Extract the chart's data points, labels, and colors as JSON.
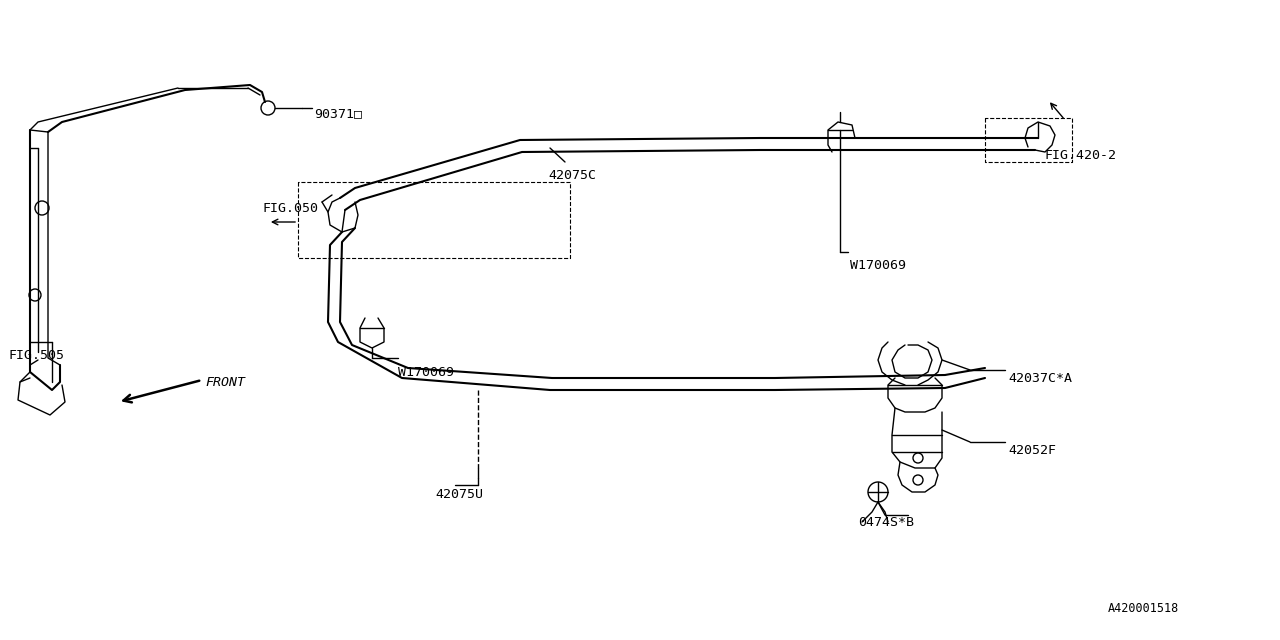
{
  "background_color": "#ffffff",
  "line_color": "#000000",
  "fig_width": 12.8,
  "fig_height": 6.4,
  "label_fontsize": 9.5,
  "small_fontsize": 8.5,
  "labels": {
    "90371D": "90371□",
    "FIG505": "FIG.505",
    "FIG050": "FIG.050",
    "42075C": "42075C",
    "FIG420": "FIG.420-2",
    "W170069_top": "W170069",
    "W170069_bot": "W170069",
    "42075U": "42075U",
    "42037C": "42037C*A",
    "42052F": "42052F",
    "0474S": "0474S*B",
    "FRONT": "FRONT",
    "diagram_id": "A420001518"
  }
}
